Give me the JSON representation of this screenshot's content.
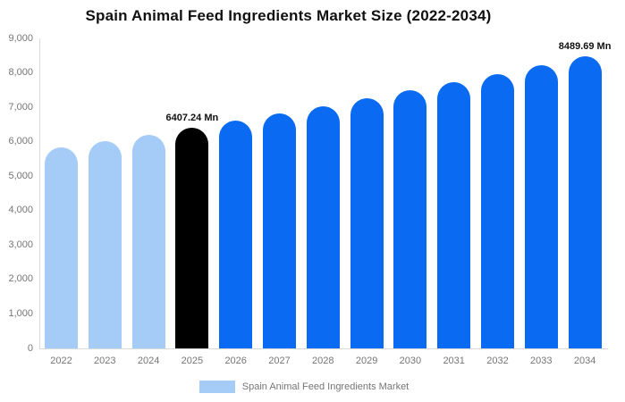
{
  "title": "Spain Animal Feed Ingredients Market Size (2022-2034)",
  "legend": {
    "label": "Spain Animal Feed Ingredients Market",
    "swatch_color": "#a5cbf7"
  },
  "colors": {
    "historical_bar": "#a5cbf7",
    "base_year_bar": "#000000",
    "forecast_bar": "#0a6bf2",
    "axis_line": "#d9d9d9",
    "tick_text": "#757575",
    "data_label_text": "#111111"
  },
  "chart_data": {
    "type": "bar",
    "title": "Spain Animal Feed Ingredients Market Size (2022-2034)",
    "unit": "Mn",
    "categories": [
      "2022",
      "2023",
      "2024",
      "2025",
      "2026",
      "2027",
      "2028",
      "2029",
      "2030",
      "2031",
      "2032",
      "2033",
      "2034"
    ],
    "values": [
      5833.5,
      6018.8,
      6210.0,
      6407.24,
      6610.8,
      6820.8,
      7037.5,
      7261.0,
      7491.7,
      7729.7,
      7975.2,
      8228.6,
      8489.69
    ],
    "bar_colors": [
      "#a5cbf7",
      "#a5cbf7",
      "#a5cbf7",
      "#000000",
      "#0a6bf2",
      "#0a6bf2",
      "#0a6bf2",
      "#0a6bf2",
      "#0a6bf2",
      "#0a6bf2",
      "#0a6bf2",
      "#0a6bf2",
      "#0a6bf2"
    ],
    "data_labels": [
      {
        "index": 3,
        "text": "6407.24 Mn"
      },
      {
        "index": 12,
        "text": "8489.69 Mn"
      }
    ],
    "xlabel": "",
    "ylabel": "",
    "ylim": [
      0,
      9000
    ],
    "ytick_interval": 1000,
    "ytick_labels_top_to_bottom": [
      "9,000",
      "8,000",
      "7,000",
      "6,000",
      "5,000",
      "4,000",
      "3,000",
      "2,000",
      "1,000",
      "0"
    ],
    "grid": false,
    "legend_position": "bottom"
  }
}
